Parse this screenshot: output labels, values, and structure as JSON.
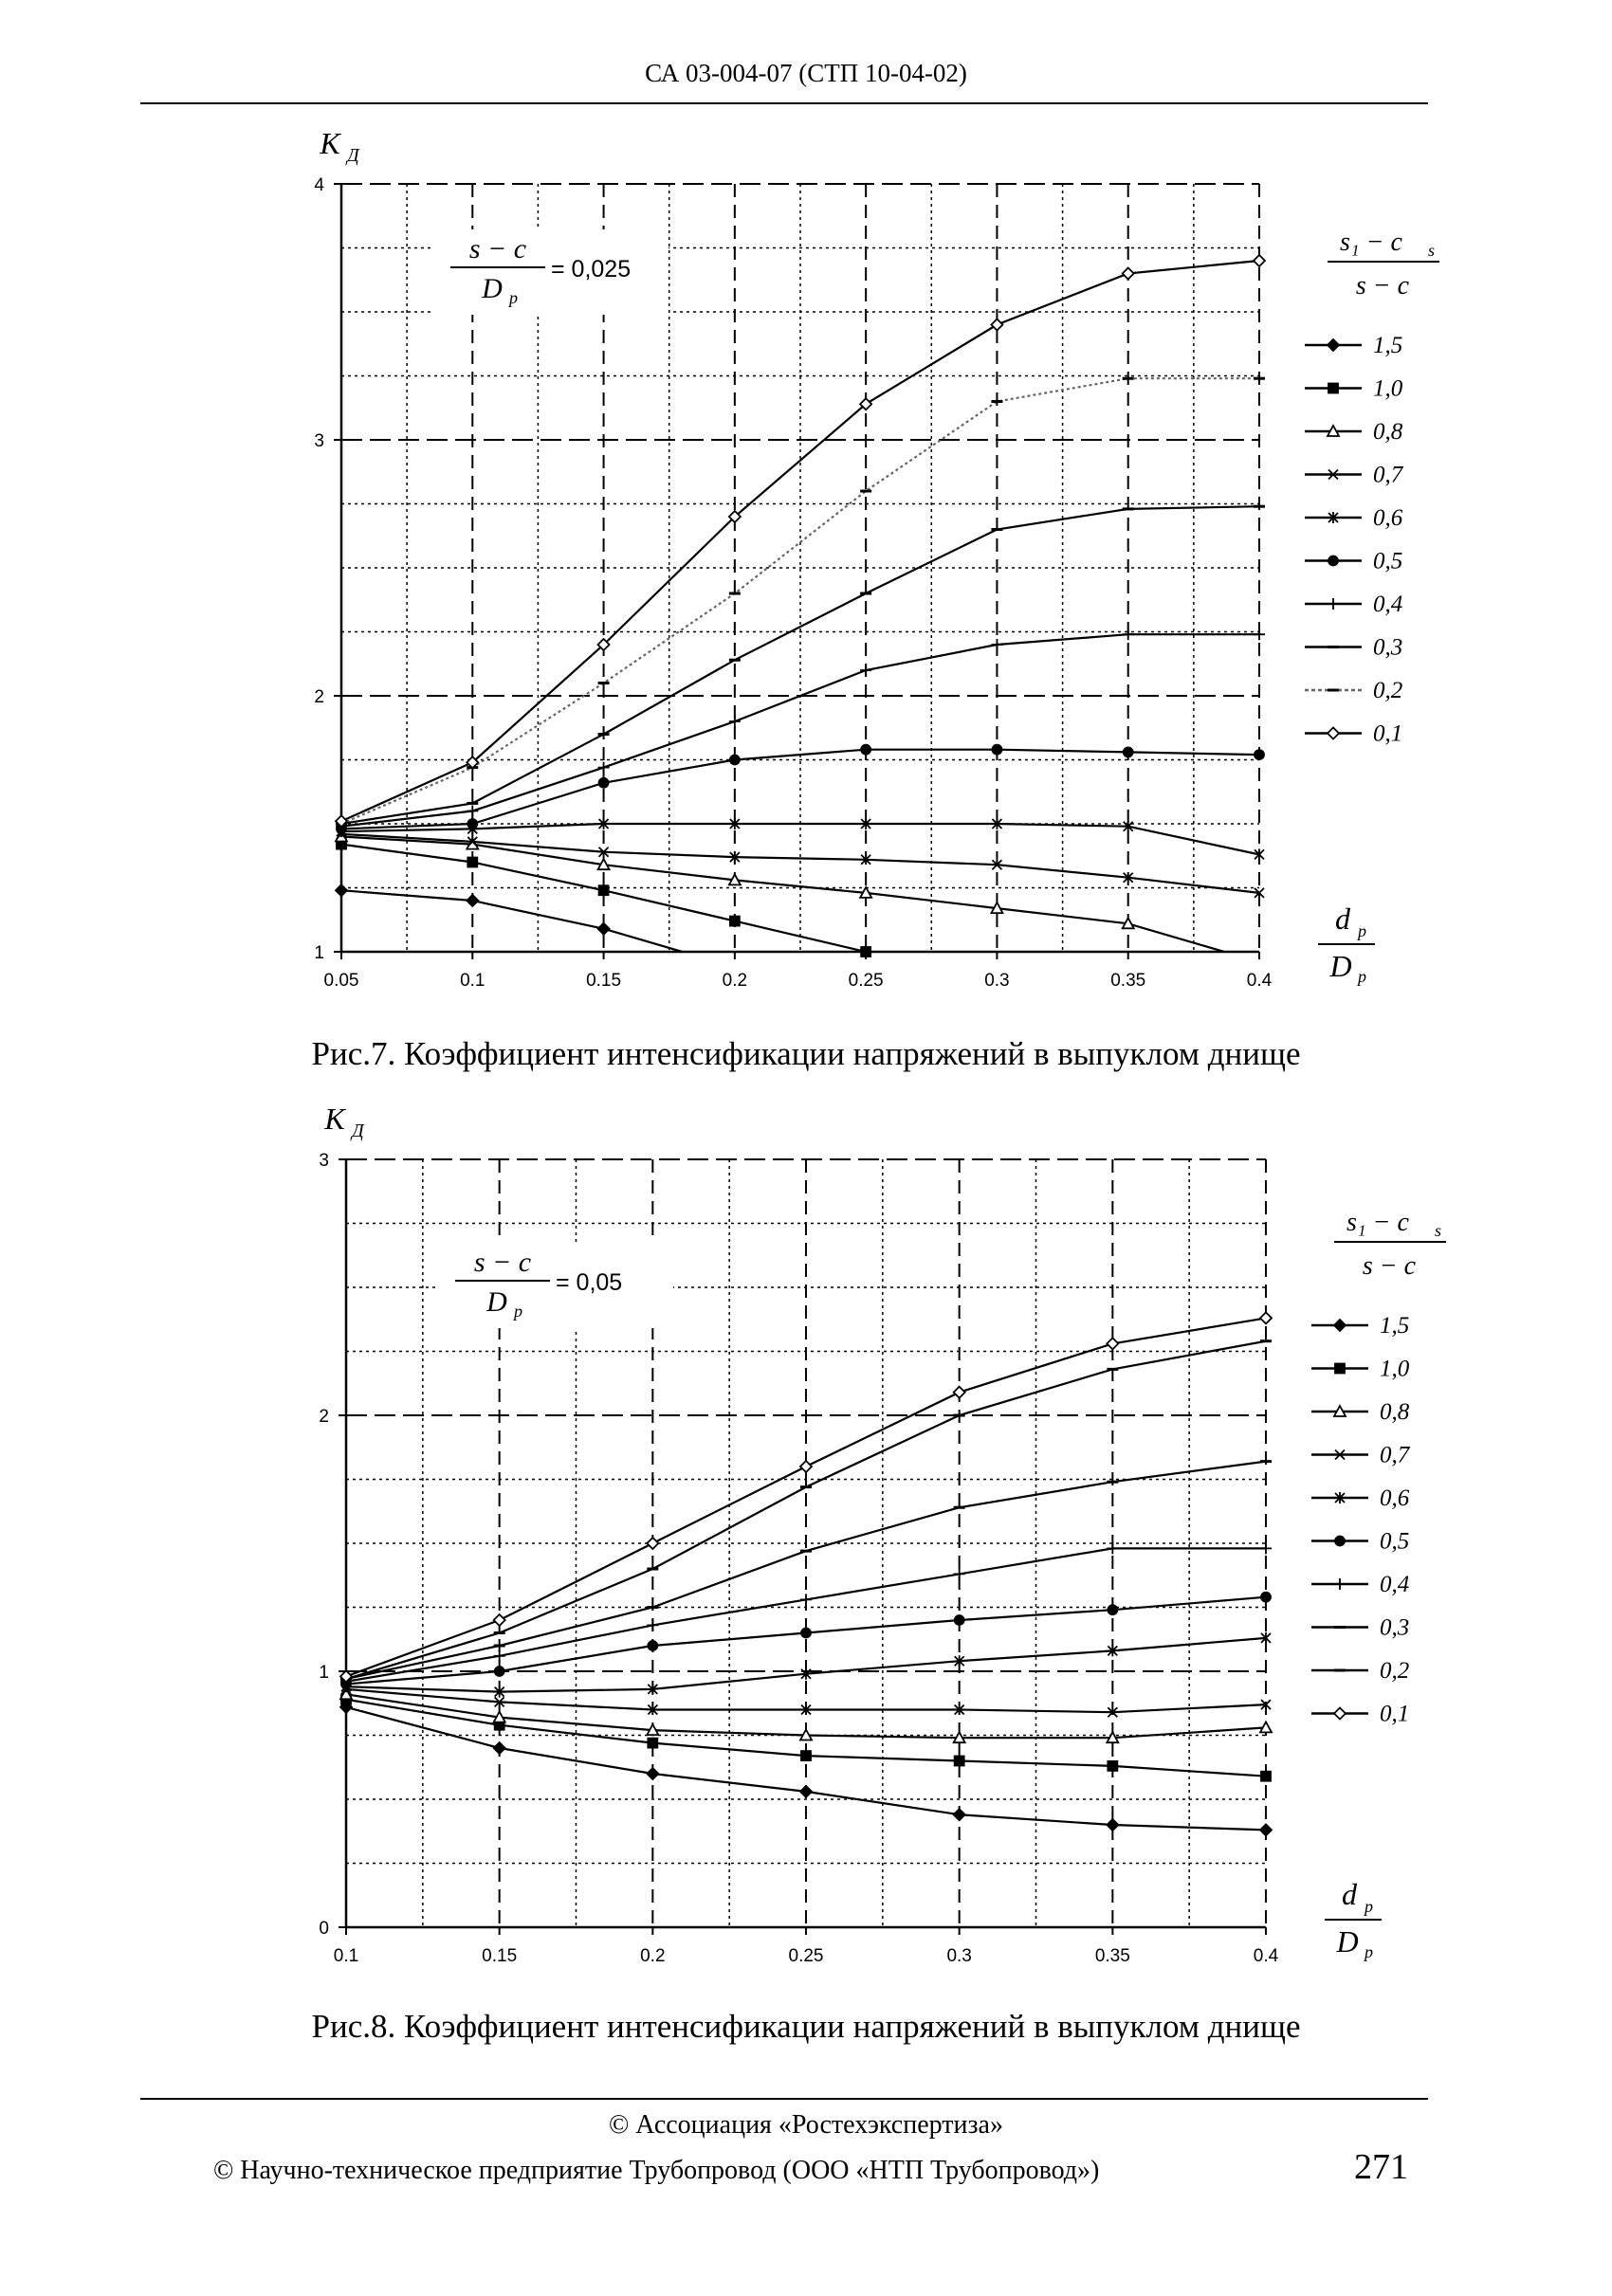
{
  "header": {
    "text": "СА 03-004-07 (СТП 10-04-02)"
  },
  "footer": {
    "line1": "© Ассоциация «Ростехэкспертиза»",
    "line2": "© Научно-техническое предприятие Трубопровод (ООО «НТП Трубопровод»)",
    "page_number": "271"
  },
  "chart_data": [
    {
      "type": "line",
      "caption": "Рис.7. Коэффициент интенсификации напряжений в выпуклом днище",
      "ylabel": "K",
      "ylabel_sub": "Д",
      "xlabel_num": "d",
      "xlabel_den": "D",
      "xlabel_sub": "р",
      "annotation": {
        "num": "s − c",
        "den": "D",
        "den_sub": "р",
        "value": "= 0,025"
      },
      "legend_title": {
        "num": "s₁ − c",
        "num_sub": "s",
        "den": "s − c"
      },
      "legend_position": "right",
      "grid": true,
      "xlim": [
        0.05,
        0.4
      ],
      "ylim": [
        1,
        4
      ],
      "x_ticks": [
        "0.05",
        "0.1",
        "0.15",
        "0.2",
        "0.25",
        "0.3",
        "0.35",
        "0.4"
      ],
      "y_ticks": [
        "1",
        "2",
        "3",
        "4"
      ],
      "series": [
        {
          "name": "1,5",
          "marker": "diamond-filled",
          "x": [
            0.05,
            0.1,
            0.15,
            0.2,
            0.25,
            0.3,
            0.35,
            0.4
          ],
          "values": [
            1.24,
            1.2,
            1.09,
            0.94,
            null,
            null,
            null,
            null
          ]
        },
        {
          "name": "1,0",
          "marker": "square-filled",
          "x": [
            0.05,
            0.1,
            0.15,
            0.2,
            0.25,
            0.3,
            0.35,
            0.4
          ],
          "values": [
            1.42,
            1.35,
            1.24,
            1.12,
            1.0,
            0.82,
            null,
            null
          ]
        },
        {
          "name": "0,8",
          "marker": "triangle-open",
          "x": [
            0.05,
            0.1,
            0.15,
            0.2,
            0.25,
            0.3,
            0.35,
            0.4
          ],
          "values": [
            1.45,
            1.42,
            1.34,
            1.28,
            1.23,
            1.17,
            1.11,
            0.96
          ]
        },
        {
          "name": "0,7",
          "marker": "x",
          "x": [
            0.05,
            0.1,
            0.15,
            0.2,
            0.25,
            0.3,
            0.35,
            0.4
          ],
          "values": [
            1.46,
            1.43,
            1.39,
            1.37,
            1.36,
            1.34,
            1.29,
            1.23
          ]
        },
        {
          "name": "0,6",
          "marker": "asterisk",
          "x": [
            0.05,
            0.1,
            0.15,
            0.2,
            0.25,
            0.3,
            0.35,
            0.4
          ],
          "values": [
            1.47,
            1.48,
            1.5,
            1.5,
            1.5,
            1.5,
            1.49,
            1.38
          ]
        },
        {
          "name": "0,5",
          "marker": "circle-filled",
          "x": [
            0.05,
            0.1,
            0.15,
            0.2,
            0.25,
            0.3,
            0.35,
            0.4
          ],
          "values": [
            1.48,
            1.5,
            1.66,
            1.75,
            1.79,
            1.79,
            1.78,
            1.77
          ]
        },
        {
          "name": "0,4",
          "marker": "plus",
          "x": [
            0.05,
            0.1,
            0.15,
            0.2,
            0.25,
            0.3,
            0.35,
            0.4
          ],
          "values": [
            1.49,
            1.55,
            1.72,
            1.9,
            2.1,
            2.2,
            2.24,
            2.24
          ]
        },
        {
          "name": "0,3",
          "marker": "dash",
          "x": [
            0.05,
            0.1,
            0.15,
            0.2,
            0.25,
            0.3,
            0.35,
            0.4
          ],
          "values": [
            1.5,
            1.58,
            1.85,
            2.14,
            2.4,
            2.65,
            2.73,
            2.74
          ]
        },
        {
          "name": "0,2",
          "marker": "dash",
          "dashed": true,
          "x": [
            0.05,
            0.1,
            0.15,
            0.2,
            0.25,
            0.3,
            0.35,
            0.4
          ],
          "values": [
            1.5,
            1.72,
            2.05,
            2.4,
            2.8,
            3.15,
            3.24,
            3.24
          ]
        },
        {
          "name": "0,1",
          "marker": "diamond-open",
          "x": [
            0.05,
            0.1,
            0.15,
            0.2,
            0.25,
            0.3,
            0.35,
            0.4
          ],
          "values": [
            1.51,
            1.74,
            2.2,
            2.7,
            3.14,
            3.45,
            3.65,
            3.7
          ]
        }
      ]
    },
    {
      "type": "line",
      "caption": "Рис.8. Коэффициент интенсификации напряжений в выпуклом днище",
      "ylabel": "K",
      "ylabel_sub": "Д",
      "xlabel_num": "d",
      "xlabel_den": "D",
      "xlabel_sub": "р",
      "annotation": {
        "num": "s − c",
        "den": "D",
        "den_sub": "р",
        "value": "= 0,05"
      },
      "legend_title": {
        "num": "s₁ − c",
        "num_sub": "s",
        "den": "s − c"
      },
      "legend_position": "right",
      "grid": true,
      "xlim": [
        0.1,
        0.4
      ],
      "ylim": [
        0,
        3
      ],
      "x_ticks": [
        "0.1",
        "0.15",
        "0.2",
        "0.25",
        "0.3",
        "0.35",
        "0.4"
      ],
      "y_ticks": [
        "0",
        "1",
        "2",
        "3"
      ],
      "series": [
        {
          "name": "1,5",
          "marker": "diamond-filled",
          "x": [
            0.1,
            0.15,
            0.2,
            0.25,
            0.3,
            0.35,
            0.4
          ],
          "values": [
            0.86,
            0.7,
            0.6,
            0.53,
            0.44,
            0.4,
            0.38
          ]
        },
        {
          "name": "1,0",
          "marker": "square-filled",
          "x": [
            0.1,
            0.15,
            0.2,
            0.25,
            0.3,
            0.35,
            0.4
          ],
          "values": [
            0.89,
            0.79,
            0.72,
            0.67,
            0.65,
            0.63,
            0.59
          ]
        },
        {
          "name": "0,8",
          "marker": "triangle-open",
          "x": [
            0.1,
            0.15,
            0.2,
            0.25,
            0.3,
            0.35,
            0.4
          ],
          "values": [
            0.91,
            0.82,
            0.77,
            0.75,
            0.74,
            0.74,
            0.78
          ]
        },
        {
          "name": "0,7",
          "marker": "x",
          "x": [
            0.1,
            0.15,
            0.2,
            0.25,
            0.3,
            0.35,
            0.4
          ],
          "values": [
            0.93,
            0.88,
            0.85,
            0.85,
            0.85,
            0.84,
            0.87
          ]
        },
        {
          "name": "0,6",
          "marker": "asterisk",
          "x": [
            0.1,
            0.15,
            0.2,
            0.25,
            0.3,
            0.35,
            0.4
          ],
          "values": [
            0.94,
            0.92,
            0.93,
            0.99,
            1.04,
            1.08,
            1.13
          ]
        },
        {
          "name": "0,5",
          "marker": "circle-filled",
          "x": [
            0.1,
            0.15,
            0.2,
            0.25,
            0.3,
            0.35,
            0.4
          ],
          "values": [
            0.95,
            1.0,
            1.1,
            1.15,
            1.2,
            1.24,
            1.29
          ]
        },
        {
          "name": "0,4",
          "marker": "plus",
          "x": [
            0.1,
            0.15,
            0.2,
            0.25,
            0.3,
            0.35,
            0.4
          ],
          "values": [
            0.96,
            1.06,
            1.18,
            1.28,
            1.38,
            1.48,
            1.48
          ]
        },
        {
          "name": "0,3",
          "marker": "dash",
          "x": [
            0.1,
            0.15,
            0.2,
            0.25,
            0.3,
            0.35,
            0.4
          ],
          "values": [
            0.97,
            1.1,
            1.25,
            1.47,
            1.64,
            1.74,
            1.82
          ]
        },
        {
          "name": "0,2",
          "marker": "dash",
          "x": [
            0.1,
            0.15,
            0.2,
            0.25,
            0.3,
            0.35,
            0.4
          ],
          "values": [
            0.97,
            1.15,
            1.4,
            1.72,
            2.0,
            2.18,
            2.29
          ]
        },
        {
          "name": "0,1",
          "marker": "diamond-open",
          "x": [
            0.1,
            0.15,
            0.2,
            0.25,
            0.3,
            0.35,
            0.4
          ],
          "values": [
            0.98,
            1.2,
            1.5,
            1.8,
            2.09,
            2.28,
            2.38
          ]
        }
      ]
    }
  ]
}
